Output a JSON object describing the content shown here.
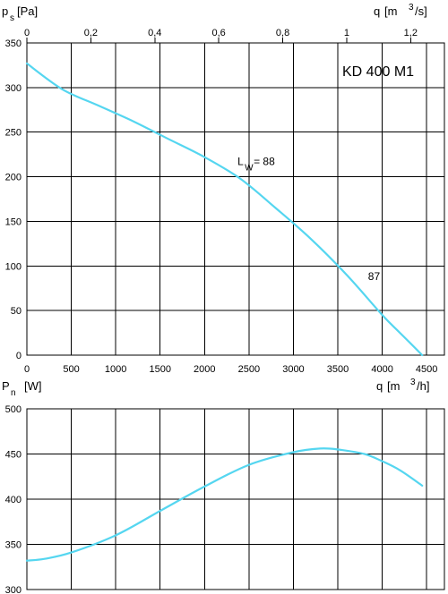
{
  "colors": {
    "curve": "#55d6f0",
    "grid": "#000000",
    "background": "#ffffff"
  },
  "chart_data": [
    {
      "type": "line",
      "chart": "static-pressure",
      "model_label": "KD 400 M1",
      "y_axis": {
        "symbol": "p",
        "subscript": "s",
        "unit": "[Pa]",
        "lim": [
          0,
          350
        ],
        "ticks": [
          0,
          50,
          100,
          150,
          200,
          250,
          300,
          350
        ]
      },
      "x_axis_bottom": {
        "symbol": "q",
        "unit_prefix": "[m",
        "unit_exp": "3",
        "unit_suffix": "/h]",
        "lim": [
          0,
          4700
        ],
        "ticks": [
          0,
          500,
          1000,
          1500,
          2000,
          2500,
          3000,
          3500,
          4000,
          4500
        ],
        "tick_labels": [
          "0",
          "500",
          "1000",
          "1500",
          "2000",
          "2500",
          "3000",
          "3500",
          "4000",
          "4500"
        ]
      },
      "x_axis_top": {
        "symbol": "q",
        "unit_prefix": "[m",
        "unit_exp": "3",
        "unit_suffix": "/s]",
        "ticks": [
          0,
          0.2,
          0.4,
          0.6,
          0.8,
          1,
          1.2
        ],
        "tick_labels": [
          "0",
          "0,2",
          "0,4",
          "0,6",
          "0,8",
          "1",
          "1,2"
        ]
      },
      "grid": true,
      "series": [
        {
          "x": [
            0,
            400,
            800,
            1200,
            1600,
            2000,
            2400,
            2800,
            3200,
            3600,
            4000,
            4200,
            4450
          ],
          "y": [
            327,
            298,
            280,
            262,
            242,
            222,
            198,
            165,
            130,
            90,
            45,
            25,
            0
          ]
        }
      ],
      "annotations": [
        {
          "text": "L",
          "sub": "W",
          "suffix": "= 88",
          "x": 2250,
          "y": 203
        },
        {
          "text": "87",
          "x": 3800,
          "y": 82
        }
      ]
    },
    {
      "type": "line",
      "chart": "power",
      "y_axis": {
        "symbol": "P",
        "subscript": "n",
        "unit": "[W]",
        "lim": [
          300,
          500
        ],
        "ticks": [
          300,
          350,
          400,
          450,
          500
        ]
      },
      "x_axis": {
        "lim": [
          0,
          4700
        ],
        "ticks": [
          0,
          500,
          1000,
          1500,
          2000,
          2500,
          3000,
          3500,
          4000,
          4500
        ]
      },
      "grid": true,
      "series": [
        {
          "x": [
            0,
            200,
            500,
            1000,
            1500,
            2000,
            2500,
            3000,
            3300,
            3500,
            3800,
            4000,
            4200,
            4450
          ],
          "y": [
            332,
            334,
            341,
            360,
            387,
            414,
            438,
            452,
            456,
            455,
            450,
            442,
            432,
            415
          ]
        }
      ]
    }
  ]
}
